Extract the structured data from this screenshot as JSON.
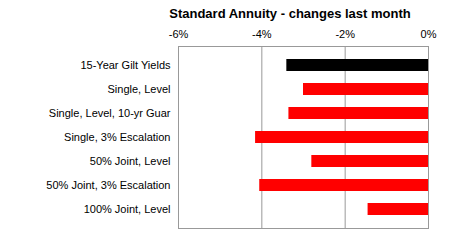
{
  "chart_data": {
    "type": "bar",
    "title": "Standard Annuity - changes last month",
    "orientation": "horizontal",
    "categories": [
      "15-Year Gilt Yields",
      "Single, Level",
      "Single, Level, 10-yr Guar",
      "Single, 3% Escalation",
      "50% Joint, Level",
      "50% Joint, 3% Escalation",
      "100% Joint, Level"
    ],
    "values": [
      -3.4,
      -3.0,
      -3.35,
      -4.15,
      -2.8,
      -4.05,
      -1.45
    ],
    "colors": [
      "#000000",
      "#ff0000",
      "#ff0000",
      "#ff0000",
      "#ff0000",
      "#ff0000",
      "#ff0000"
    ],
    "xlim": [
      -6,
      0
    ],
    "xticks": [
      {
        "value": -6,
        "label": "-6%"
      },
      {
        "value": -4,
        "label": "-4%"
      },
      {
        "value": -2,
        "label": "-2%"
      },
      {
        "value": 0,
        "label": "0%"
      }
    ],
    "grid": true
  }
}
